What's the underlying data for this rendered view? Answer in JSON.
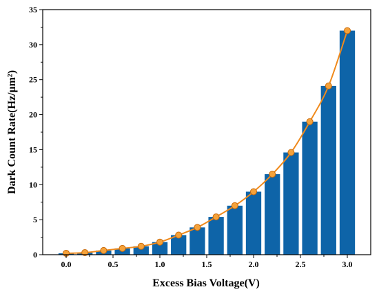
{
  "chart_data": {
    "type": "bar",
    "title": "",
    "xlabel": "Excess Bias Voltage(V)",
    "ylabel": "Dark Count Rate(Hz/μm²)",
    "xlim": [
      -0.25,
      3.25
    ],
    "ylim": [
      0,
      35
    ],
    "x_ticks": [
      "0.0",
      "0.5",
      "1.0",
      "1.5",
      "2.0",
      "2.5",
      "3.0"
    ],
    "y_ticks": [
      "0",
      "5",
      "10",
      "15",
      "20",
      "25",
      "30",
      "35"
    ],
    "x": [
      0.0,
      0.2,
      0.4,
      0.6,
      0.8,
      1.0,
      1.2,
      1.4,
      1.6,
      1.8,
      2.0,
      2.2,
      2.4,
      2.6,
      2.8,
      3.0
    ],
    "values": [
      0.2,
      0.3,
      0.6,
      0.9,
      1.2,
      1.8,
      2.8,
      3.9,
      5.4,
      7.0,
      9.0,
      11.5,
      14.6,
      19.0,
      24.1,
      32.0
    ],
    "bar_color": "#0e64a8",
    "line_color": "#f08a1c",
    "marker_color": "#f5a23a",
    "grid": false,
    "legend": false
  }
}
